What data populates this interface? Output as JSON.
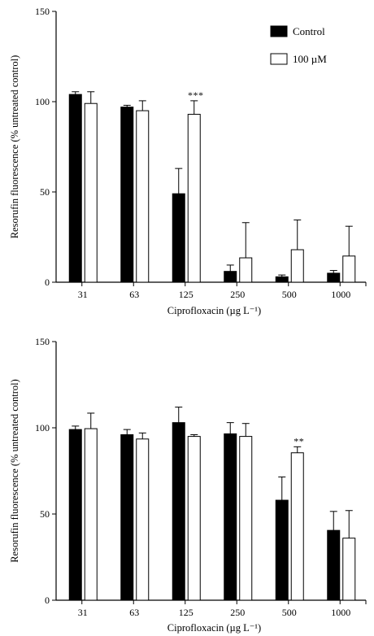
{
  "chart_data": [
    {
      "type": "bar",
      "xlabel": "Ciprofloxacin (µg L⁻¹)",
      "ylabel": "Resorufin fluorescence (% untreated control)",
      "categories": [
        "31",
        "63",
        "125",
        "250",
        "500",
        "1000"
      ],
      "ylim": [
        0,
        150
      ],
      "yticks": [
        0,
        50,
        100,
        150
      ],
      "legend_position": "top-right",
      "series": [
        {
          "name": "Control",
          "color": "#000000",
          "values": [
            104,
            97,
            49,
            6,
            3,
            5
          ],
          "errors": [
            1.5,
            1,
            14,
            3.5,
            1,
            1.5
          ]
        },
        {
          "name": "100 µM",
          "color": "#ffffff",
          "values": [
            99,
            95,
            93,
            13.5,
            18,
            14.5
          ],
          "errors": [
            6.5,
            5.5,
            7.5,
            19.5,
            16.5,
            16.5
          ]
        }
      ],
      "annotations": [
        {
          "category": "125",
          "series": "100 µM",
          "text": "***"
        }
      ]
    },
    {
      "type": "bar",
      "xlabel": "Ciprofloxacin (µg L⁻¹)",
      "ylabel": "Resorufin fluorescence (% untreated control)",
      "categories": [
        "31",
        "63",
        "125",
        "250",
        "500",
        "1000"
      ],
      "ylim": [
        0,
        150
      ],
      "yticks": [
        0,
        50,
        100,
        150
      ],
      "series": [
        {
          "color": "#000000",
          "values": [
            99,
            96,
            103,
            96.5,
            58,
            40.5
          ],
          "errors": [
            2,
            3,
            9,
            6.5,
            13.5,
            11
          ]
        },
        {
          "color": "#ffffff",
          "values": [
            99.5,
            93.5,
            95,
            95,
            85.5,
            36
          ],
          "errors": [
            9,
            3.5,
            1,
            7.5,
            3.5,
            16
          ]
        }
      ],
      "annotations": [
        {
          "category": "500",
          "series": 1,
          "text": "**"
        }
      ]
    }
  ]
}
